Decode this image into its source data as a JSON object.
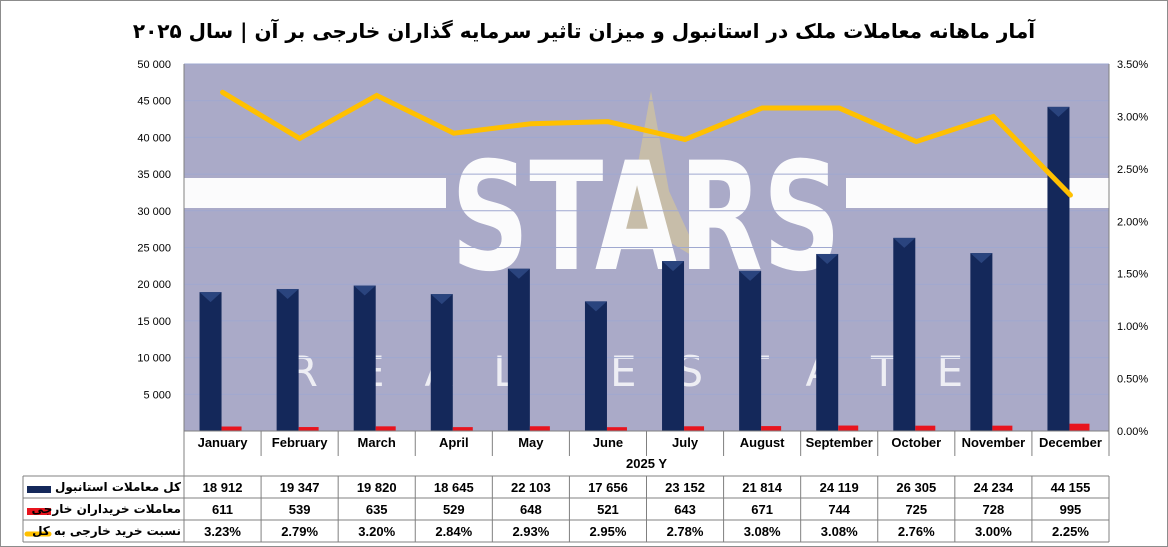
{
  "chart_data": {
    "type": "bar",
    "title": "آمار ماهانه معاملات ملک در استانبول و میزان تاثیر سرمایه گذاران خارجی بر آن | سال ۲۰۲۵",
    "xlabel": "2025 Y",
    "categories": [
      "January",
      "February",
      "March",
      "April",
      "May",
      "June",
      "July",
      "August",
      "September",
      "October",
      "November",
      "December"
    ],
    "series": [
      {
        "name": "کل معاملات استانبول",
        "type": "bar",
        "axis": "left",
        "color": "#14285a",
        "values": [
          18912,
          19347,
          19820,
          18645,
          22103,
          17656,
          23152,
          21814,
          24119,
          26305,
          24234,
          44155
        ],
        "labels": [
          "18 912",
          "19 347",
          "19 820",
          "18 645",
          "22 103",
          "17 656",
          "23 152",
          "21 814",
          "24 119",
          "26 305",
          "24 234",
          "44 155"
        ]
      },
      {
        "name": "معاملات خریداران خارجی",
        "type": "bar",
        "axis": "left",
        "color": "#e8141e",
        "values": [
          611,
          539,
          635,
          529,
          648,
          521,
          643,
          671,
          744,
          725,
          728,
          995
        ],
        "labels": [
          "611",
          "539",
          "635",
          "529",
          "648",
          "521",
          "643",
          "671",
          "744",
          "725",
          "728",
          "995"
        ]
      },
      {
        "name": "نسبت خرید خارجی به کل",
        "type": "line",
        "axis": "right",
        "color": "#ffc000",
        "values": [
          3.23,
          2.79,
          3.2,
          2.84,
          2.93,
          2.95,
          2.78,
          3.08,
          3.08,
          2.76,
          3.0,
          2.25
        ],
        "labels": [
          "3.23%",
          "2.79%",
          "3.20%",
          "2.84%",
          "2.93%",
          "2.95%",
          "2.78%",
          "3.08%",
          "3.08%",
          "2.76%",
          "3.00%",
          "2.25%"
        ]
      }
    ],
    "y_left": {
      "ylim": [
        0,
        50000
      ],
      "ticks": [
        "5 000",
        "10 000",
        "15 000",
        "20 000",
        "25 000",
        "30 000",
        "35 000",
        "40 000",
        "45 000",
        "50 000"
      ]
    },
    "y_right": {
      "ylim": [
        0,
        3.5
      ],
      "ticks": [
        "0.00%",
        "0.50%",
        "1.00%",
        "1.50%",
        "2.00%",
        "2.50%",
        "3.00%",
        "3.50%"
      ]
    },
    "grid": true,
    "legend": "data-table",
    "plot_background": "#aaaac8"
  },
  "watermark": {
    "main": "STARS",
    "sub": "REAL ESTATE"
  }
}
